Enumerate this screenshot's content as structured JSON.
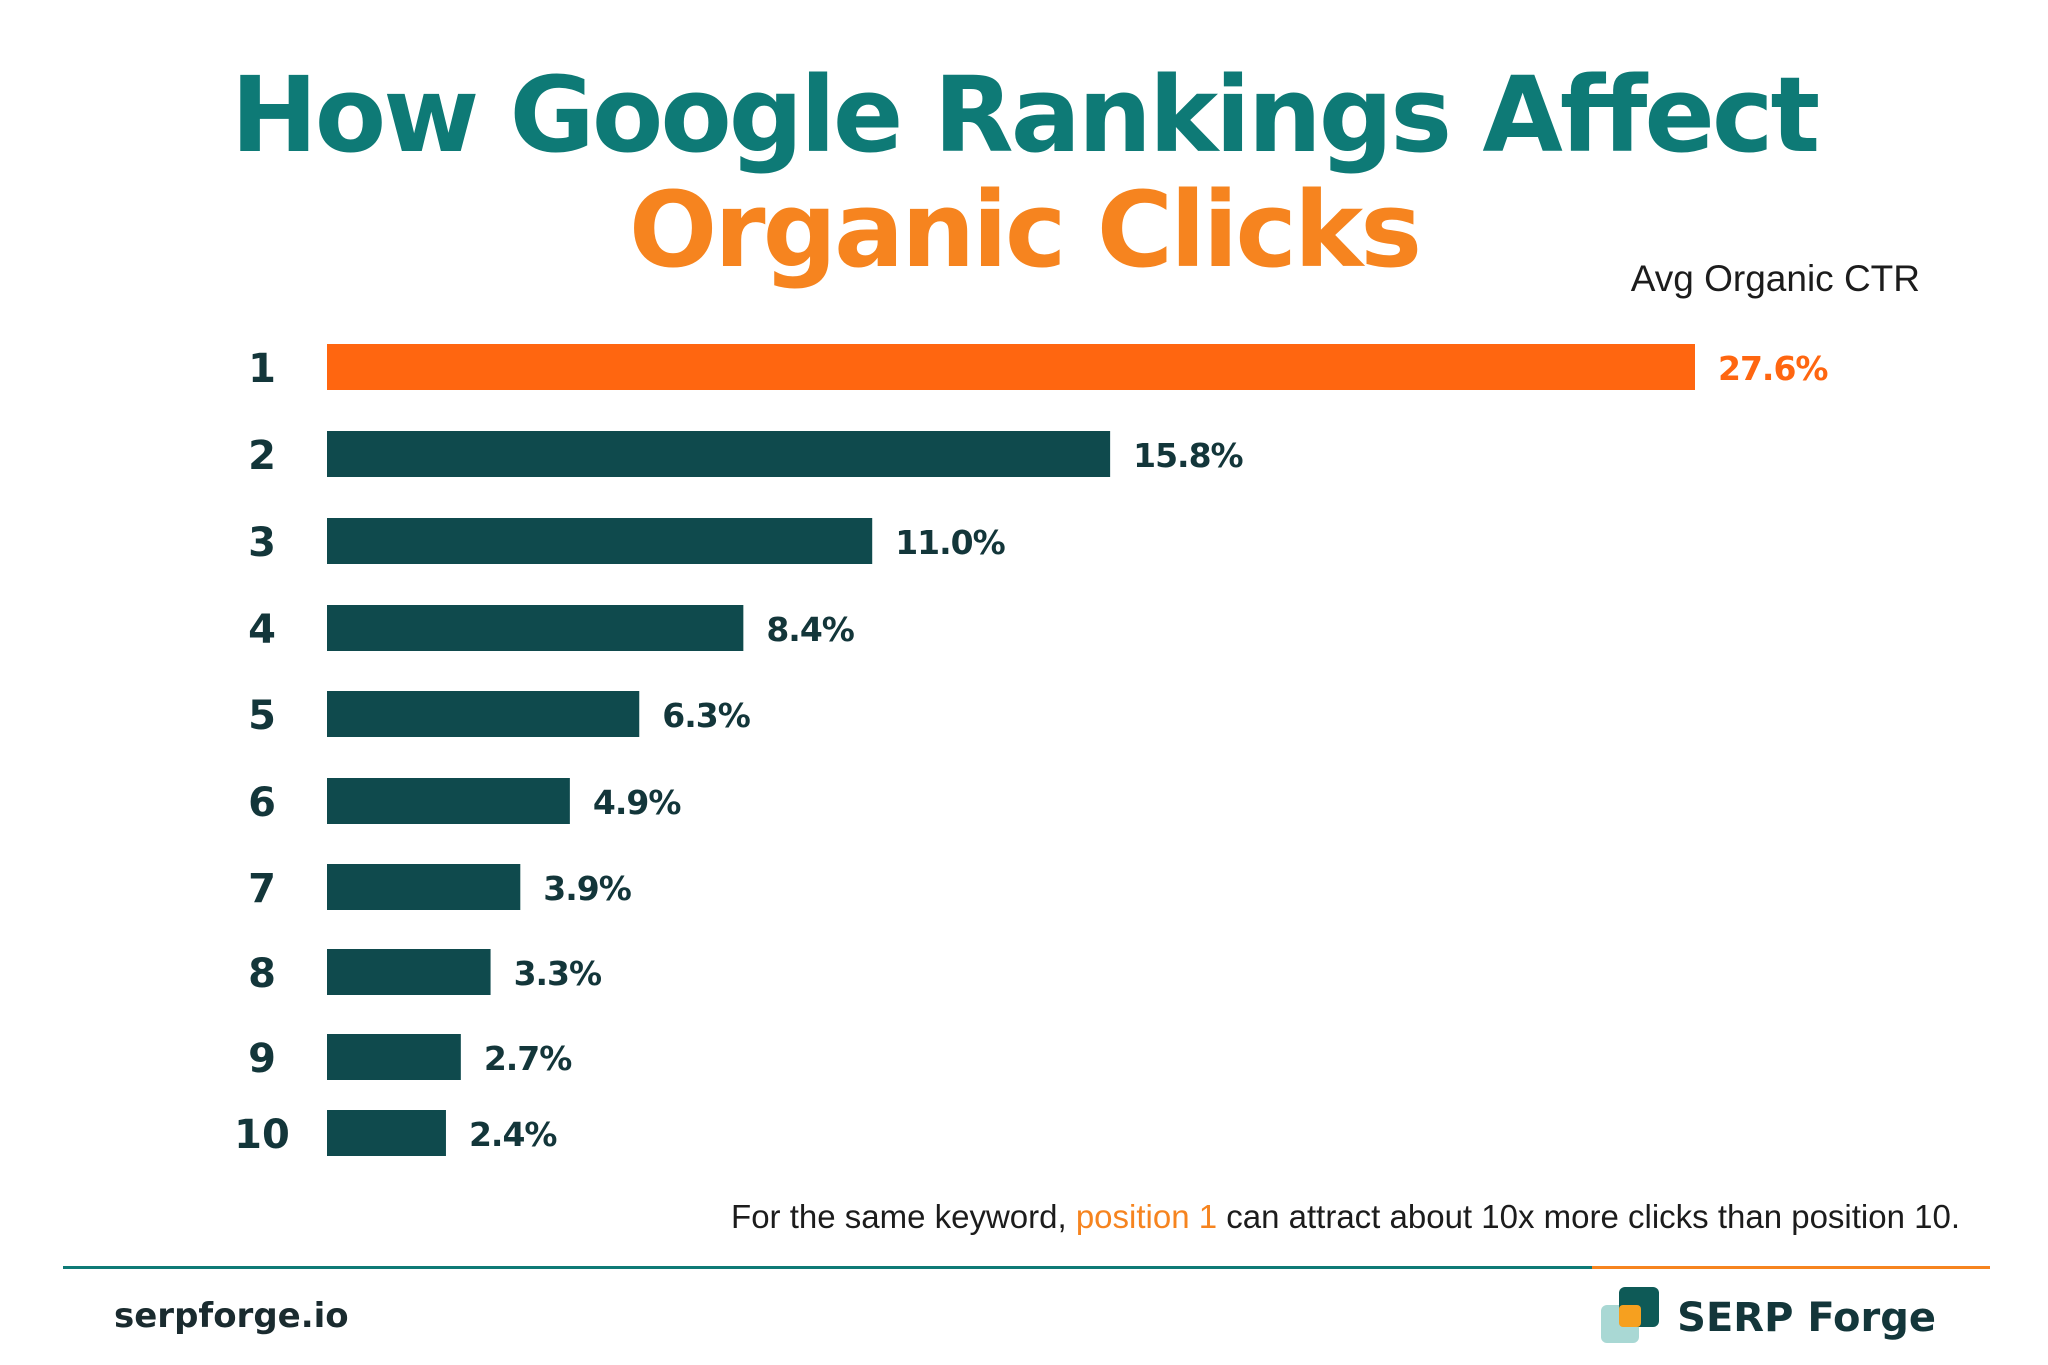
{
  "title": {
    "part1": "How Google Rankings Affect ",
    "part2": "Organic Clicks"
  },
  "colors": {
    "teal": "#0e7a76",
    "orange": "#f6841f",
    "bar_dark": "#0f4a4d",
    "bar_highlight": "#ff6610"
  },
  "chart_data": {
    "type": "bar",
    "orientation": "horizontal",
    "title": "How Google Rankings Affect Organic Clicks",
    "ylabel": "Avg Organic CTR",
    "categories": [
      "1",
      "2",
      "3",
      "4",
      "5",
      "6",
      "7",
      "8",
      "9",
      "10"
    ],
    "values": [
      27.6,
      15.8,
      11.0,
      8.4,
      6.3,
      4.9,
      3.9,
      3.3,
      2.7,
      2.4
    ],
    "value_labels": [
      "27.6%",
      "15.8%",
      "11.0%",
      "8.4%",
      "6.3%",
      "4.9%",
      "3.9%",
      "3.3%",
      "2.7%",
      "2.4%"
    ],
    "highlight_category": "1",
    "grid": false,
    "legend": "none"
  },
  "note": {
    "before": "For the same keyword, ",
    "highlight": "position 1",
    "after": " can attract about 10x more clicks than position 10."
  },
  "footer": {
    "site": "serpforge.io",
    "brand": "SERP Forge",
    "logo_icon": "stacked-squares-logo-icon"
  }
}
